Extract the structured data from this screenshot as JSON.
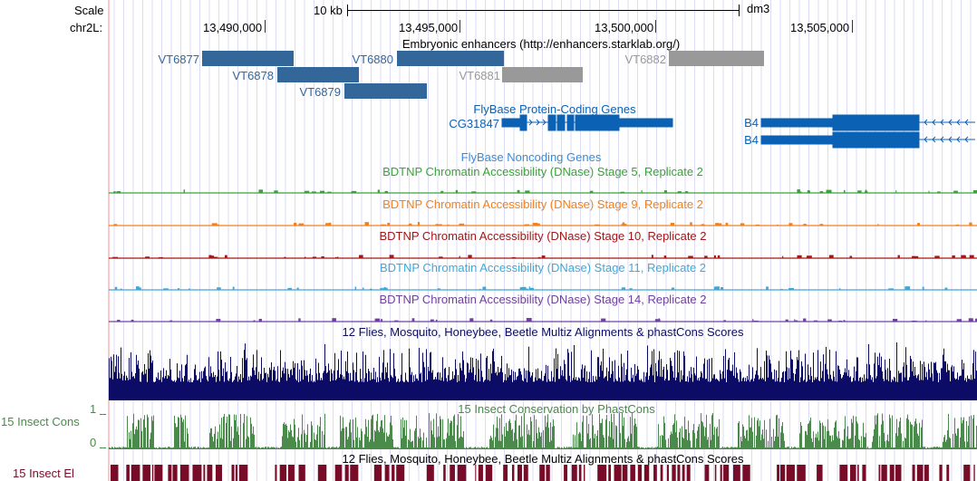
{
  "header": {
    "scale_label": "Scale",
    "scale_bar_label": "10 kb",
    "assembly": "dm3",
    "chrom_label": "chr2L:",
    "positions": [
      "13,490,000",
      "13,495,000",
      "13,500,000",
      "13,505,000"
    ]
  },
  "tracks": {
    "enhancers": {
      "title": "Embryonic enhancers (http://enhancers.starklab.org/)",
      "items": [
        {
          "name": "VT6877",
          "color": "#336699"
        },
        {
          "name": "VT6878",
          "color": "#336699"
        },
        {
          "name": "VT6879",
          "color": "#336699"
        },
        {
          "name": "VT6880",
          "color": "#336699"
        },
        {
          "name": "VT6881",
          "color": "#999999"
        },
        {
          "name": "VT6882",
          "color": "#999999"
        }
      ]
    },
    "protein_genes": {
      "title": "FlyBase Protein-Coding Genes",
      "genes": [
        "CG31847",
        "B4",
        "B4"
      ],
      "color": "#0b61b4"
    },
    "noncoding_genes": {
      "title": "FlyBase Noncoding Genes"
    },
    "dnase": [
      {
        "title": "BDTNP Chromatin Accessibility (DNase) Stage 5, Replicate 2",
        "color": "#3aa23a"
      },
      {
        "title": "BDTNP Chromatin Accessibility (DNase) Stage 9, Replicate 2",
        "color": "#f08020"
      },
      {
        "title": "BDTNP Chromatin Accessibility (DNase) Stage 10, Replicate 2",
        "color": "#a01818"
      },
      {
        "title": "BDTNP Chromatin Accessibility (DNase) Stage 11, Replicate 2",
        "color": "#40a8d8"
      },
      {
        "title": "BDTNP Chromatin Accessibility (DNase) Stage 14, Replicate 2",
        "color": "#7040a0"
      }
    ],
    "multiz": {
      "title": "12 Flies, Mosquito, Honeybee, Beetle Multiz Alignments & phastCons Scores",
      "color": "#0c0c66"
    },
    "phastcons": {
      "title": "15 Insect Conservation by PhastCons",
      "side_label": "15 Insect Cons",
      "y_max": "1",
      "y_min": "0",
      "color": "#4a8a4a"
    },
    "elements": {
      "title": "12 Flies, Mosquito, Honeybee, Beetle Multiz Alignments & phastCons Scores",
      "side_label": "15 Insect El",
      "color": "#780c28"
    }
  }
}
